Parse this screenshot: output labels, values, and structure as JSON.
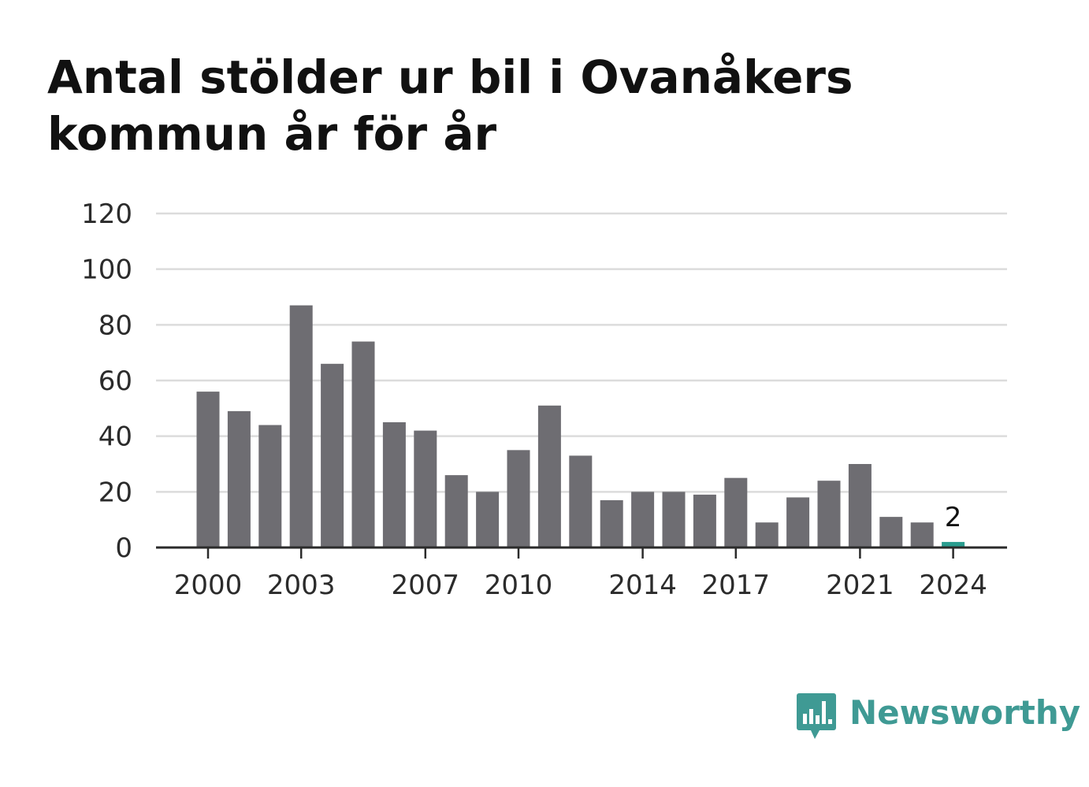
{
  "title": "Antal stölder ur bil i Ovanåkers kommun år för år",
  "brand": {
    "name": "Newsworthy",
    "color": "#3f9a94",
    "icon": "chart-speech-bubble-icon"
  },
  "chart_data": {
    "type": "bar",
    "categories": [
      2000,
      2001,
      2002,
      2003,
      2004,
      2005,
      2006,
      2007,
      2008,
      2009,
      2010,
      2011,
      2012,
      2013,
      2014,
      2015,
      2016,
      2017,
      2018,
      2019,
      2020,
      2021,
      2022,
      2023,
      2024
    ],
    "values": [
      56,
      49,
      44,
      87,
      66,
      74,
      45,
      42,
      26,
      20,
      35,
      51,
      33,
      17,
      20,
      20,
      19,
      25,
      9,
      18,
      24,
      30,
      11,
      9,
      2
    ],
    "x_tick_labels": [
      "2000",
      "2003",
      "2007",
      "2010",
      "2014",
      "2017",
      "2021",
      "2024"
    ],
    "y_ticks": [
      0,
      20,
      40,
      60,
      80,
      100,
      120
    ],
    "ylim": [
      0,
      120
    ],
    "grid": true,
    "bar_color": "#6e6d72",
    "highlight_color": "#2a9d8f",
    "highlight_category": 2024,
    "data_labels": [
      {
        "category": 2024,
        "text": "2"
      }
    ]
  }
}
